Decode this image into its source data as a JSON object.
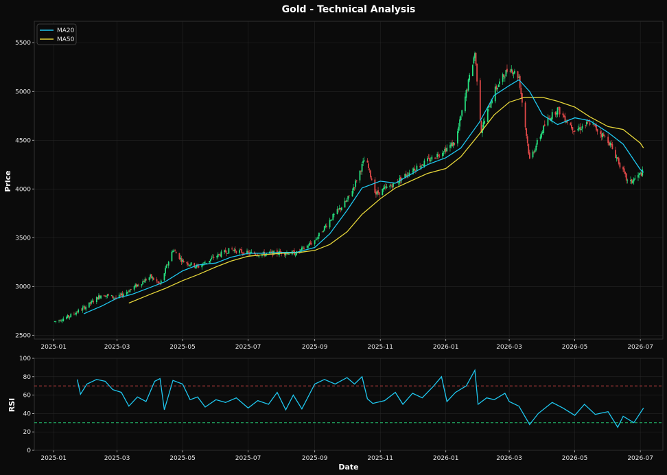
{
  "chart_data": [
    {
      "type": "candlestick",
      "title": "Gold - Technical Analysis",
      "xlabel": "",
      "ylabel": "Price",
      "ylim": [
        2460,
        5720
      ],
      "yticks": [
        2500,
        3000,
        3500,
        4000,
        4500,
        5000,
        5500
      ],
      "xtick_labels": [
        "2025-01",
        "2025-03",
        "2025-05",
        "2025-07",
        "2025-09",
        "2025-11",
        "2026-01",
        "2026-03",
        "2026-05",
        "2026-07"
      ],
      "x_range": [
        "2024-12-14",
        "2026-07-22"
      ],
      "grid": true,
      "legend_position": "top-left",
      "colors": {
        "up": "#26e07f",
        "down": "#e04848",
        "ma20": "#1fc8f0",
        "ma50": "#e6d63a"
      },
      "series": [
        {
          "name": "MA20",
          "color": "#1fc8f0"
        },
        {
          "name": "MA50",
          "color": "#e6d63a"
        }
      ],
      "price_path": [
        [
          "2025-01-02",
          2640
        ],
        [
          "2025-01-15",
          2690
        ],
        [
          "2025-02-01",
          2800
        ],
        [
          "2025-02-15",
          2920
        ],
        [
          "2025-03-01",
          2880
        ],
        [
          "2025-03-15",
          2980
        ],
        [
          "2025-04-01",
          3100
        ],
        [
          "2025-04-10",
          3020
        ],
        [
          "2025-04-22",
          3380
        ],
        [
          "2025-05-01",
          3260
        ],
        [
          "2025-05-15",
          3200
        ],
        [
          "2025-06-01",
          3310
        ],
        [
          "2025-06-15",
          3380
        ],
        [
          "2025-07-01",
          3340
        ],
        [
          "2025-07-15",
          3330
        ],
        [
          "2025-08-01",
          3350
        ],
        [
          "2025-08-15",
          3340
        ],
        [
          "2025-09-01",
          3470
        ],
        [
          "2025-09-15",
          3680
        ],
        [
          "2025-10-01",
          3880
        ],
        [
          "2025-10-08",
          4040
        ],
        [
          "2025-10-18",
          4320
        ],
        [
          "2025-10-28",
          3950
        ],
        [
          "2025-11-15",
          4060
        ],
        [
          "2025-12-01",
          4200
        ],
        [
          "2025-12-20",
          4320
        ],
        [
          "2026-01-10",
          4480
        ],
        [
          "2026-01-28",
          5400
        ],
        [
          "2026-02-03",
          4600
        ],
        [
          "2026-02-15",
          5000
        ],
        [
          "2026-03-01",
          5250
        ],
        [
          "2026-03-10",
          5150
        ],
        [
          "2026-03-20",
          4300
        ],
        [
          "2026-04-05",
          4700
        ],
        [
          "2026-04-15",
          4820
        ],
        [
          "2026-05-01",
          4600
        ],
        [
          "2026-05-15",
          4680
        ],
        [
          "2026-06-01",
          4500
        ],
        [
          "2026-06-10",
          4300
        ],
        [
          "2026-06-20",
          4050
        ],
        [
          "2026-07-04",
          4180
        ]
      ],
      "ma20": [
        [
          "2025-01-29",
          2720
        ],
        [
          "2025-02-15",
          2800
        ],
        [
          "2025-03-01",
          2880
        ],
        [
          "2025-03-15",
          2920
        ],
        [
          "2025-04-01",
          2990
        ],
        [
          "2025-04-15",
          3050
        ],
        [
          "2025-05-01",
          3160
        ],
        [
          "2025-05-15",
          3220
        ],
        [
          "2025-06-01",
          3240
        ],
        [
          "2025-06-15",
          3300
        ],
        [
          "2025-07-01",
          3340
        ],
        [
          "2025-07-15",
          3340
        ],
        [
          "2025-08-01",
          3350
        ],
        [
          "2025-08-15",
          3350
        ],
        [
          "2025-09-01",
          3400
        ],
        [
          "2025-09-15",
          3540
        ],
        [
          "2025-10-01",
          3780
        ],
        [
          "2025-10-15",
          4010
        ],
        [
          "2025-11-01",
          4080
        ],
        [
          "2025-11-15",
          4060
        ],
        [
          "2025-12-01",
          4160
        ],
        [
          "2025-12-15",
          4250
        ],
        [
          "2026-01-01",
          4320
        ],
        [
          "2026-01-15",
          4420
        ],
        [
          "2026-02-01",
          4680
        ],
        [
          "2026-02-15",
          4960
        ],
        [
          "2026-03-01",
          5060
        ],
        [
          "2026-03-10",
          5120
        ],
        [
          "2026-03-20",
          5000
        ],
        [
          "2026-04-01",
          4760
        ],
        [
          "2026-04-15",
          4660
        ],
        [
          "2026-05-01",
          4730
        ],
        [
          "2026-05-15",
          4700
        ],
        [
          "2026-06-01",
          4580
        ],
        [
          "2026-06-15",
          4460
        ],
        [
          "2026-07-01",
          4200
        ],
        [
          "2026-07-04",
          4170
        ]
      ],
      "ma50": [
        [
          "2025-03-12",
          2830
        ],
        [
          "2025-04-01",
          2920
        ],
        [
          "2025-04-15",
          2980
        ],
        [
          "2025-05-01",
          3060
        ],
        [
          "2025-05-15",
          3120
        ],
        [
          "2025-06-01",
          3200
        ],
        [
          "2025-06-15",
          3260
        ],
        [
          "2025-07-01",
          3310
        ],
        [
          "2025-07-15",
          3325
        ],
        [
          "2025-08-01",
          3340
        ],
        [
          "2025-08-15",
          3345
        ],
        [
          "2025-09-01",
          3370
        ],
        [
          "2025-09-15",
          3430
        ],
        [
          "2025-10-01",
          3560
        ],
        [
          "2025-10-15",
          3740
        ],
        [
          "2025-11-01",
          3900
        ],
        [
          "2025-11-15",
          4010
        ],
        [
          "2025-12-01",
          4090
        ],
        [
          "2025-12-15",
          4160
        ],
        [
          "2026-01-01",
          4210
        ],
        [
          "2026-01-15",
          4330
        ],
        [
          "2026-02-01",
          4560
        ],
        [
          "2026-02-15",
          4760
        ],
        [
          "2026-03-01",
          4890
        ],
        [
          "2026-03-15",
          4940
        ],
        [
          "2026-04-01",
          4940
        ],
        [
          "2026-04-15",
          4900
        ],
        [
          "2026-05-01",
          4840
        ],
        [
          "2026-05-15",
          4740
        ],
        [
          "2026-06-01",
          4640
        ],
        [
          "2026-06-15",
          4610
        ],
        [
          "2026-07-01",
          4470
        ],
        [
          "2026-07-04",
          4420
        ]
      ]
    },
    {
      "type": "line",
      "xlabel": "Date",
      "ylabel": "RSI",
      "ylim": [
        0,
        100
      ],
      "yticks": [
        0,
        20,
        40,
        60,
        80,
        100
      ],
      "xtick_labels": [
        "2025-01",
        "2025-03",
        "2025-05",
        "2025-07",
        "2025-09",
        "2025-11",
        "2026-01",
        "2026-03",
        "2026-05",
        "2026-07"
      ],
      "x_range": [
        "2024-12-14",
        "2026-07-22"
      ],
      "overbought": 70,
      "oversold": 30,
      "colors": {
        "line": "#1fc8f0",
        "overbought": "#e04848",
        "oversold": "#26e07f"
      },
      "rsi": [
        [
          "2025-01-23",
          77
        ],
        [
          "2025-01-26",
          61
        ],
        [
          "2025-02-01",
          72
        ],
        [
          "2025-02-10",
          77
        ],
        [
          "2025-02-18",
          75
        ],
        [
          "2025-02-25",
          66
        ],
        [
          "2025-03-05",
          63
        ],
        [
          "2025-03-12",
          48
        ],
        [
          "2025-03-20",
          58
        ],
        [
          "2025-03-28",
          53
        ],
        [
          "2025-04-05",
          75
        ],
        [
          "2025-04-10",
          78
        ],
        [
          "2025-04-14",
          44
        ],
        [
          "2025-04-22",
          76
        ],
        [
          "2025-05-01",
          72
        ],
        [
          "2025-05-08",
          55
        ],
        [
          "2025-05-15",
          58
        ],
        [
          "2025-05-22",
          47
        ],
        [
          "2025-06-01",
          55
        ],
        [
          "2025-06-10",
          52
        ],
        [
          "2025-06-20",
          57
        ],
        [
          "2025-07-01",
          46
        ],
        [
          "2025-07-10",
          54
        ],
        [
          "2025-07-20",
          50
        ],
        [
          "2025-07-28",
          63
        ],
        [
          "2025-08-05",
          44
        ],
        [
          "2025-08-12",
          60
        ],
        [
          "2025-08-20",
          45
        ],
        [
          "2025-09-01",
          72
        ],
        [
          "2025-09-10",
          77
        ],
        [
          "2025-09-20",
          72
        ],
        [
          "2025-10-01",
          79
        ],
        [
          "2025-10-08",
          72
        ],
        [
          "2025-10-15",
          80
        ],
        [
          "2025-10-20",
          56
        ],
        [
          "2025-10-25",
          51
        ],
        [
          "2025-11-05",
          54
        ],
        [
          "2025-11-15",
          63
        ],
        [
          "2025-11-22",
          50
        ],
        [
          "2025-12-01",
          62
        ],
        [
          "2025-12-10",
          57
        ],
        [
          "2025-12-20",
          69
        ],
        [
          "2025-12-28",
          80
        ],
        [
          "2026-01-02",
          53
        ],
        [
          "2026-01-10",
          63
        ],
        [
          "2026-01-20",
          70
        ],
        [
          "2026-01-28",
          87
        ],
        [
          "2026-01-31",
          50
        ],
        [
          "2026-02-08",
          57
        ],
        [
          "2026-02-15",
          55
        ],
        [
          "2026-02-25",
          62
        ],
        [
          "2026-03-01",
          53
        ],
        [
          "2026-03-10",
          48
        ],
        [
          "2026-03-20",
          28
        ],
        [
          "2026-03-28",
          40
        ],
        [
          "2026-04-10",
          52
        ],
        [
          "2026-04-20",
          46
        ],
        [
          "2026-05-01",
          38
        ],
        [
          "2026-05-10",
          50
        ],
        [
          "2026-05-20",
          39
        ],
        [
          "2026-06-01",
          42
        ],
        [
          "2026-06-10",
          25
        ],
        [
          "2026-06-15",
          37
        ],
        [
          "2026-06-25",
          30
        ],
        [
          "2026-07-04",
          46
        ]
      ]
    }
  ]
}
